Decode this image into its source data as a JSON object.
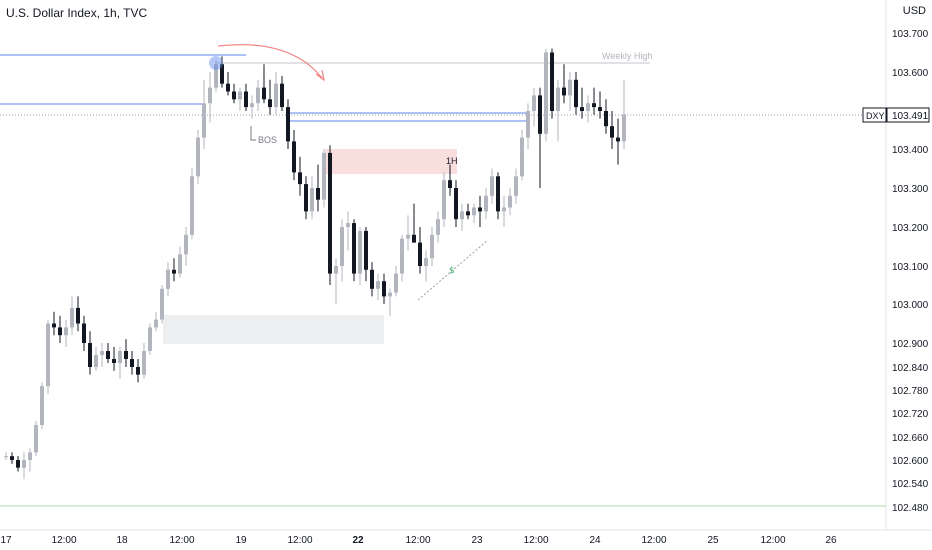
{
  "header": {
    "title": "U.S. Dollar Index, 1h, TVC"
  },
  "axis": {
    "currency": "USD",
    "price_ticks": [
      "103.700",
      "103.600",
      "103.500",
      "103.400",
      "103.300",
      "103.200",
      "103.100",
      "103.000",
      "102.900",
      "102.840",
      "102.780",
      "102.720",
      "102.660",
      "102.600",
      "102.540",
      "102.480"
    ],
    "time_ticks": [
      "17",
      "12:00",
      "18",
      "12:00",
      "19",
      "12:00",
      "22",
      "12:00",
      "23",
      "12:00",
      "24",
      "12:00",
      "25",
      "12:00",
      "26"
    ]
  },
  "price_label": {
    "symbol": "DXY",
    "value": "103.491"
  },
  "annotations": {
    "weekly_high": "Weekly High",
    "bos": "BOS",
    "tf_1h": "1H"
  },
  "colors": {
    "bull": "#b2b5be",
    "bear": "#131722",
    "blue_line": "#5b84ec",
    "zone_red": "#f9dede",
    "zone_gray": "#eceeef",
    "green_line": "#a8dca8",
    "arrow": "#f08080"
  },
  "chart_data": {
    "type": "candlestick",
    "title": "U.S. Dollar Index, 1h, TVC",
    "ylabel": "USD",
    "ylim": [
      102.46,
      103.76
    ],
    "levels": {
      "weekly_high": 103.62,
      "current": 103.491
    },
    "candles": [
      [
        102.61,
        102.62,
        102.6,
        102.61
      ],
      [
        102.61,
        102.62,
        102.59,
        102.6
      ],
      [
        102.6,
        102.61,
        102.57,
        102.58
      ],
      [
        102.58,
        102.62,
        102.55,
        102.6
      ],
      [
        102.6,
        102.63,
        102.57,
        102.62
      ],
      [
        102.62,
        102.7,
        102.61,
        102.69
      ],
      [
        102.69,
        102.8,
        102.68,
        102.79
      ],
      [
        102.79,
        102.96,
        102.77,
        102.95
      ],
      [
        102.95,
        102.98,
        102.92,
        102.94
      ],
      [
        102.94,
        102.97,
        102.9,
        102.92
      ],
      [
        102.92,
        102.96,
        102.89,
        102.94
      ],
      [
        102.94,
        103.02,
        102.92,
        102.99
      ],
      [
        102.99,
        103.02,
        102.93,
        102.95
      ],
      [
        102.95,
        102.97,
        102.88,
        102.9
      ],
      [
        102.9,
        102.93,
        102.82,
        102.84
      ],
      [
        102.84,
        102.89,
        102.83,
        102.87
      ],
      [
        102.87,
        102.9,
        102.84,
        102.88
      ],
      [
        102.88,
        102.9,
        102.85,
        102.86
      ],
      [
        102.86,
        102.89,
        102.83,
        102.85
      ],
      [
        102.85,
        102.89,
        102.81,
        102.88
      ],
      [
        102.88,
        102.91,
        102.84,
        102.86
      ],
      [
        102.86,
        102.88,
        102.82,
        102.84
      ],
      [
        102.84,
        102.86,
        102.8,
        102.82
      ],
      [
        102.82,
        102.9,
        102.81,
        102.88
      ],
      [
        102.88,
        102.95,
        102.87,
        102.94
      ],
      [
        102.94,
        102.98,
        102.93,
        102.96
      ],
      [
        102.96,
        103.05,
        102.95,
        103.04
      ],
      [
        103.04,
        103.11,
        103.02,
        103.09
      ],
      [
        103.09,
        103.12,
        103.06,
        103.08
      ],
      [
        103.08,
        103.15,
        103.07,
        103.13
      ],
      [
        103.13,
        103.2,
        103.1,
        103.18
      ],
      [
        103.18,
        103.35,
        103.17,
        103.33
      ],
      [
        103.33,
        103.45,
        103.31,
        103.43
      ],
      [
        103.43,
        103.58,
        103.4,
        103.52
      ],
      [
        103.52,
        103.6,
        103.47,
        103.56
      ],
      [
        103.56,
        103.63,
        103.55,
        103.62
      ],
      [
        103.62,
        103.64,
        103.56,
        103.57
      ],
      [
        103.57,
        103.6,
        103.54,
        103.55
      ],
      [
        103.55,
        103.57,
        103.52,
        103.53
      ],
      [
        103.53,
        103.56,
        103.5,
        103.55
      ],
      [
        103.55,
        103.57,
        103.5,
        103.51
      ],
      [
        103.51,
        103.54,
        103.48,
        103.52
      ],
      [
        103.52,
        103.58,
        103.5,
        103.56
      ],
      [
        103.56,
        103.62,
        103.52,
        103.53
      ],
      [
        103.53,
        103.58,
        103.49,
        103.51
      ],
      [
        103.51,
        103.6,
        103.49,
        103.57
      ],
      [
        103.57,
        103.59,
        103.5,
        103.51
      ],
      [
        103.51,
        103.53,
        103.4,
        103.42
      ],
      [
        103.42,
        103.45,
        103.32,
        103.34
      ],
      [
        103.34,
        103.38,
        103.28,
        103.31
      ],
      [
        103.31,
        103.33,
        103.22,
        103.24
      ],
      [
        103.24,
        103.33,
        103.22,
        103.3
      ],
      [
        103.3,
        103.36,
        103.24,
        103.27
      ],
      [
        103.27,
        103.4,
        103.25,
        103.39
      ],
      [
        103.39,
        103.41,
        103.05,
        103.08
      ],
      [
        103.08,
        103.12,
        103.0,
        103.1
      ],
      [
        103.1,
        103.22,
        103.06,
        103.2
      ],
      [
        103.2,
        103.24,
        103.14,
        103.21
      ],
      [
        103.21,
        103.22,
        103.06,
        103.08
      ],
      [
        103.08,
        103.2,
        103.05,
        103.19
      ],
      [
        103.19,
        103.2,
        103.06,
        103.09
      ],
      [
        103.09,
        103.11,
        103.02,
        103.04
      ],
      [
        103.04,
        103.08,
        103.01,
        103.06
      ],
      [
        103.06,
        103.08,
        103.0,
        103.02
      ],
      [
        103.02,
        103.04,
        102.97,
        103.03
      ],
      [
        103.03,
        103.1,
        103.02,
        103.08
      ],
      [
        103.08,
        103.18,
        103.06,
        103.17
      ],
      [
        103.17,
        103.23,
        103.14,
        103.18
      ],
      [
        103.18,
        103.26,
        103.16,
        103.16
      ],
      [
        103.16,
        103.2,
        103.08,
        103.1
      ],
      [
        103.1,
        103.14,
        103.06,
        103.12
      ],
      [
        103.12,
        103.2,
        103.1,
        103.18
      ],
      [
        103.18,
        103.24,
        103.16,
        103.22
      ],
      [
        103.22,
        103.34,
        103.2,
        103.32
      ],
      [
        103.32,
        103.36,
        103.28,
        103.3
      ],
      [
        103.3,
        103.32,
        103.2,
        103.22
      ],
      [
        103.22,
        103.26,
        103.19,
        103.24
      ],
      [
        103.24,
        103.26,
        103.22,
        103.23
      ],
      [
        103.23,
        103.26,
        103.21,
        103.25
      ],
      [
        103.25,
        103.28,
        103.2,
        103.24
      ],
      [
        103.24,
        103.3,
        103.22,
        103.28
      ],
      [
        103.28,
        103.35,
        103.26,
        103.33
      ],
      [
        103.33,
        103.34,
        103.22,
        103.24
      ],
      [
        103.24,
        103.28,
        103.2,
        103.25
      ],
      [
        103.25,
        103.3,
        103.23,
        103.28
      ],
      [
        103.28,
        103.35,
        103.26,
        103.33
      ],
      [
        103.33,
        103.45,
        103.32,
        103.43
      ],
      [
        103.43,
        103.52,
        103.4,
        103.5
      ],
      [
        103.5,
        103.56,
        103.46,
        103.54
      ],
      [
        103.54,
        103.56,
        103.3,
        103.44
      ],
      [
        103.44,
        103.66,
        103.42,
        103.65
      ],
      [
        103.65,
        103.66,
        103.48,
        103.5
      ],
      [
        103.5,
        103.58,
        103.42,
        103.56
      ],
      [
        103.56,
        103.62,
        103.52,
        103.54
      ],
      [
        103.54,
        103.6,
        103.5,
        103.58
      ],
      [
        103.58,
        103.6,
        103.49,
        103.51
      ],
      [
        103.51,
        103.56,
        103.48,
        103.5
      ],
      [
        103.5,
        103.54,
        103.47,
        103.52
      ],
      [
        103.52,
        103.56,
        103.49,
        103.51
      ],
      [
        103.51,
        103.55,
        103.48,
        103.5
      ],
      [
        103.5,
        103.53,
        103.44,
        103.46
      ],
      [
        103.46,
        103.5,
        103.4,
        103.43
      ],
      [
        103.43,
        103.48,
        103.36,
        103.42
      ],
      [
        103.42,
        103.58,
        103.4,
        103.491
      ]
    ]
  }
}
